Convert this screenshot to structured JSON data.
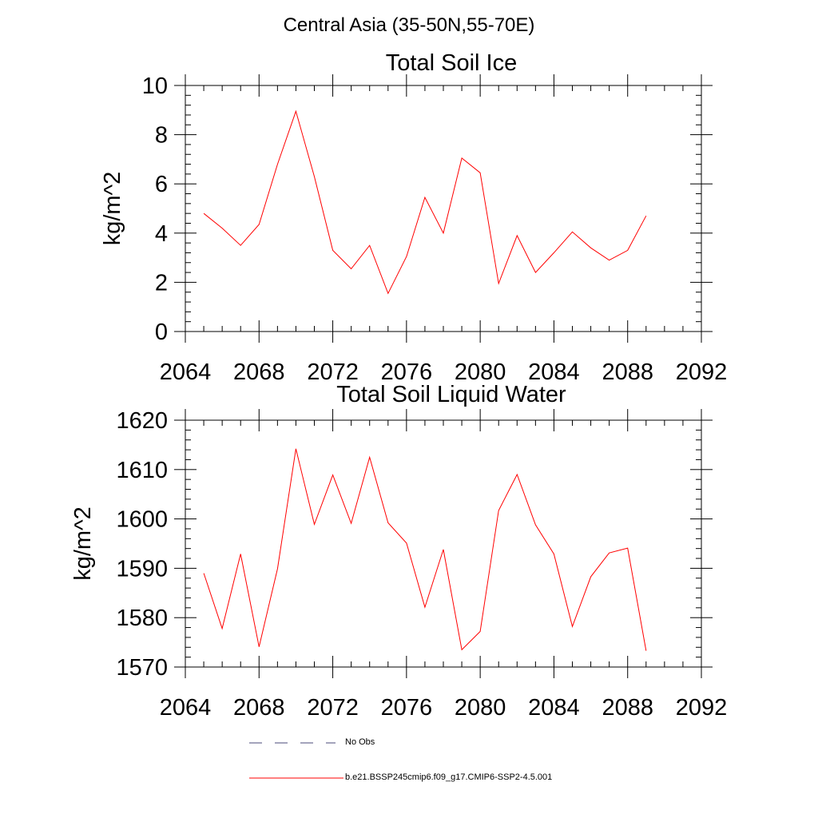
{
  "suptitle": "Central Asia (35-50N,55-70E)",
  "legend": {
    "items": [
      {
        "label": "No Obs",
        "color": "#4a4a7a",
        "dash": "dashed"
      },
      {
        "label": "b.e21.BSSP245cmip6.f09_g17.CMIP6-SSP2-4.5.001",
        "color": "#ff0000",
        "dash": "solid"
      }
    ]
  },
  "chart_data": [
    {
      "type": "line",
      "title": "Total Soil Ice",
      "xlabel": "",
      "ylabel": "kg/m^2",
      "xlim": [
        2064,
        2092
      ],
      "ylim": [
        0,
        10
      ],
      "xticks": [
        2064,
        2068,
        2072,
        2076,
        2080,
        2084,
        2088,
        2092
      ],
      "yticks": [
        0,
        2,
        4,
        6,
        8,
        10
      ],
      "grid": false,
      "series": [
        {
          "color": "#ff0000",
          "x": [
            2065,
            2066,
            2067,
            2068,
            2069,
            2070,
            2071,
            2072,
            2073,
            2074,
            2075,
            2076,
            2077,
            2078,
            2079,
            2080,
            2081,
            2082,
            2083,
            2084,
            2085,
            2086,
            2087,
            2088,
            2089
          ],
          "values": [
            4.8,
            4.2,
            3.5,
            4.35,
            6.8,
            8.95,
            6.3,
            3.3,
            2.55,
            3.5,
            1.55,
            3.05,
            5.45,
            4.0,
            7.05,
            6.45,
            1.95,
            3.9,
            2.4,
            3.2,
            4.05,
            3.4,
            2.9,
            3.3,
            4.7
          ]
        }
      ]
    },
    {
      "type": "line",
      "title": "Total Soil Liquid Water",
      "xlabel": "",
      "ylabel": "kg/m^2",
      "xlim": [
        2064,
        2092
      ],
      "ylim": [
        1570,
        1620
      ],
      "xticks": [
        2064,
        2068,
        2072,
        2076,
        2080,
        2084,
        2088,
        2092
      ],
      "yticks": [
        1570,
        1580,
        1590,
        1600,
        1610,
        1620
      ],
      "grid": false,
      "series": [
        {
          "color": "#ff0000",
          "x": [
            2065,
            2066,
            2067,
            2068,
            2069,
            2070,
            2071,
            2072,
            2073,
            2074,
            2075,
            2076,
            2077,
            2078,
            2079,
            2080,
            2081,
            2082,
            2083,
            2084,
            2085,
            2086,
            2087,
            2088,
            2089
          ],
          "values": [
            1589.0,
            1577.8,
            1592.9,
            1574.1,
            1589.9,
            1614.2,
            1598.9,
            1608.9,
            1599.1,
            1612.5,
            1599.2,
            1595.1,
            1582.1,
            1593.8,
            1573.5,
            1577.2,
            1601.7,
            1609.0,
            1598.8,
            1592.9,
            1578.2,
            1588.3,
            1593.1,
            1594.1,
            1573.3
          ]
        }
      ]
    }
  ]
}
